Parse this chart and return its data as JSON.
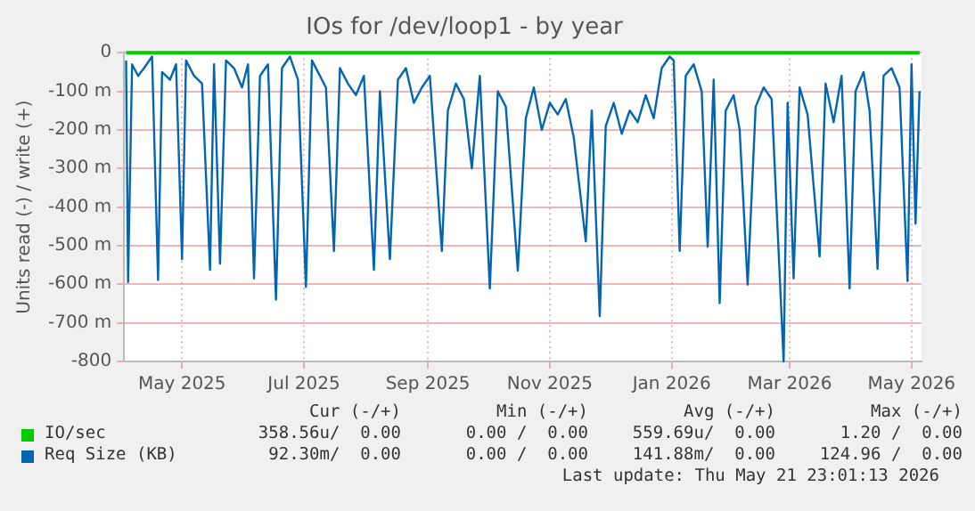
{
  "chart_data": {
    "type": "line",
    "title": "IOs for /dev/loop1 - by year",
    "ylabel": "Units read (-) / write (+)",
    "xlim": [
      "2025-04-02",
      "2026-05-06"
    ],
    "xticks": [
      {
        "value": "2025-05-01",
        "label": "May 2025"
      },
      {
        "value": "2025-07-01",
        "label": "Jul 2025"
      },
      {
        "value": "2025-09-01",
        "label": "Sep 2025"
      },
      {
        "value": "2025-11-01",
        "label": "Nov 2025"
      },
      {
        "value": "2026-01-01",
        "label": "Jan 2026"
      },
      {
        "value": "2026-03-01",
        "label": "Mar 2026"
      },
      {
        "value": "2026-05-01",
        "label": "May 2026"
      }
    ],
    "ylim": [
      -800,
      0
    ],
    "yticks": [
      -800,
      {
        "value": -700,
        "label": "-700 m"
      },
      {
        "value": -600,
        "label": "-600 m"
      },
      {
        "value": -500,
        "label": "-500 m"
      },
      {
        "value": -400,
        "label": "-400 m"
      },
      {
        "value": -300,
        "label": "-300 m"
      },
      {
        "value": -200,
        "label": "-200 m"
      },
      {
        "value": -100,
        "label": "-100 m"
      },
      0
    ],
    "grid": true,
    "legend": "bottom",
    "marker": "none",
    "line_style": "solid",
    "series": [
      {
        "name": "Req Size (KB)",
        "color": "#0066b3",
        "x": [
          "2025-04-03",
          "2025-04-04",
          "2025-04-06",
          "2025-04-09",
          "2025-04-12",
          "2025-04-16",
          "2025-04-19",
          "2025-04-21",
          "2025-04-25",
          "2025-04-28",
          "2025-05-01",
          "2025-05-03",
          "2025-05-07",
          "2025-05-11",
          "2025-05-15",
          "2025-05-17",
          "2025-05-20",
          "2025-05-23",
          "2025-05-27",
          "2025-05-31",
          "2025-06-03",
          "2025-06-06",
          "2025-06-09",
          "2025-06-13",
          "2025-06-17",
          "2025-06-20",
          "2025-06-24",
          "2025-06-28",
          "2025-07-02",
          "2025-07-05",
          "2025-07-08",
          "2025-07-12",
          "2025-07-16",
          "2025-07-19",
          "2025-07-23",
          "2025-07-27",
          "2025-07-31",
          "2025-08-05",
          "2025-08-08",
          "2025-08-13",
          "2025-08-17",
          "2025-08-21",
          "2025-08-25",
          "2025-08-29",
          "2025-09-02",
          "2025-09-08",
          "2025-09-11",
          "2025-09-15",
          "2025-09-19",
          "2025-09-23",
          "2025-09-27",
          "2025-10-02",
          "2025-10-06",
          "2025-10-10",
          "2025-10-16",
          "2025-10-20",
          "2025-10-24",
          "2025-10-28",
          "2025-11-01",
          "2025-11-05",
          "2025-11-09",
          "2025-11-13",
          "2025-11-19",
          "2025-11-22",
          "2025-11-26",
          "2025-11-29",
          "2025-12-03",
          "2025-12-07",
          "2025-12-11",
          "2025-12-15",
          "2025-12-19",
          "2025-12-23",
          "2025-12-27",
          "2025-12-31",
          "2026-01-02",
          "2026-01-05",
          "2026-01-08",
          "2026-01-12",
          "2026-01-16",
          "2026-01-19",
          "2026-01-22",
          "2026-01-25",
          "2026-01-28",
          "2026-02-01",
          "2026-02-04",
          "2026-02-08",
          "2026-02-12",
          "2026-02-16",
          "2026-02-20",
          "2026-02-26",
          "2026-02-28",
          "2026-03-03",
          "2026-03-06",
          "2026-03-10",
          "2026-03-16",
          "2026-03-19",
          "2026-03-23",
          "2026-03-27",
          "2026-03-31",
          "2026-04-03",
          "2026-04-07",
          "2026-04-10",
          "2026-04-14",
          "2026-04-17",
          "2026-04-21",
          "2026-04-25",
          "2026-04-29",
          "2026-05-01",
          "2026-05-03",
          "2026-05-05"
        ],
        "values": [
          -20,
          -594,
          -30,
          -60,
          -40,
          -10,
          -589,
          -50,
          -70,
          -30,
          -535,
          -20,
          -60,
          -80,
          -563,
          -30,
          -547,
          -20,
          -40,
          -90,
          -30,
          -585,
          -60,
          -30,
          -640,
          -40,
          -10,
          -70,
          -607,
          -20,
          -50,
          -90,
          -514,
          -40,
          -80,
          -110,
          -60,
          -563,
          -100,
          -535,
          -70,
          -40,
          -130,
          -90,
          -60,
          -514,
          -150,
          -80,
          -120,
          -300,
          -60,
          -611,
          -100,
          -140,
          -565,
          -170,
          -90,
          -200,
          -130,
          -160,
          -120,
          -220,
          -489,
          -150,
          -683,
          -190,
          -130,
          -210,
          -150,
          -180,
          -110,
          -170,
          -40,
          -10,
          -20,
          -514,
          -60,
          -30,
          -100,
          -503,
          -70,
          -649,
          -150,
          -110,
          -200,
          -601,
          -140,
          -90,
          -120,
          -800,
          -130,
          -585,
          -90,
          -160,
          -528,
          -80,
          -180,
          -60,
          -611,
          -100,
          -50,
          -150,
          -560,
          -60,
          -40,
          -90,
          -592,
          -30,
          -443,
          -100
        ]
      },
      {
        "name": "IO/sec",
        "color": "#00cc00",
        "x": [
          "2025-04-03",
          "2026-05-05"
        ],
        "values": [
          0,
          0
        ]
      }
    ],
    "annotations": [
      "Cur (-/+)",
      "Min (-/+)",
      "Avg (-/+)",
      "Max (-/+)",
      "358.56u/  0.00",
      "0.00 /  0.00",
      "559.69u/  0.00",
      "1.20 /  0.00",
      "92.30m/  0.00",
      "0.00 /  0.00",
      "141.88m/  0.00",
      "124.96 /  0.00",
      "Last update: Thu May 21 23:01:13 2026"
    ]
  }
}
